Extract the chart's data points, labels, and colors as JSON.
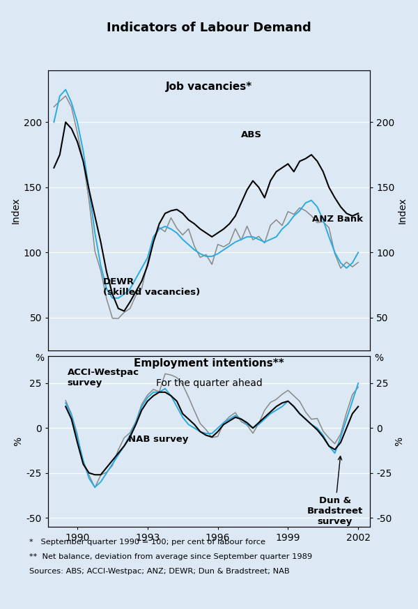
{
  "title": "Indicators of Labour Demand",
  "bg_color": "#dce9f5",
  "panel1_title": "Job vacancies*",
  "panel1_ylabel_left": "Index",
  "panel1_ylabel_right": "Index",
  "panel1_ylim": [
    25,
    240
  ],
  "panel1_yticks": [
    50,
    100,
    150,
    200
  ],
  "panel2_title_line1": "Employment intentions**",
  "panel2_title_line2": "For the quarter ahead",
  "panel2_ylabel_left": "%",
  "panel2_ylabel_right": "%",
  "panel2_ylim": [
    -55,
    40
  ],
  "panel2_yticks": [
    -50,
    -25,
    0,
    25
  ],
  "xmin": 1988.75,
  "xmax": 2002.5,
  "xticks": [
    1990,
    1993,
    1996,
    1999,
    2002
  ],
  "footnote1": "*   September quarter 1990 = 100; per cent of labour force",
  "footnote2": "**  Net balance, deviation from average since September quarter 1989",
  "footnote3": "Sources: ABS; ACCI-Westpac; ANZ; DEWR; Dun & Bradstreet; NAB",
  "color_black": "#000000",
  "color_blue": "#29ABE2",
  "color_gray": "#888888",
  "color_lightgray": "#aaaaaa"
}
